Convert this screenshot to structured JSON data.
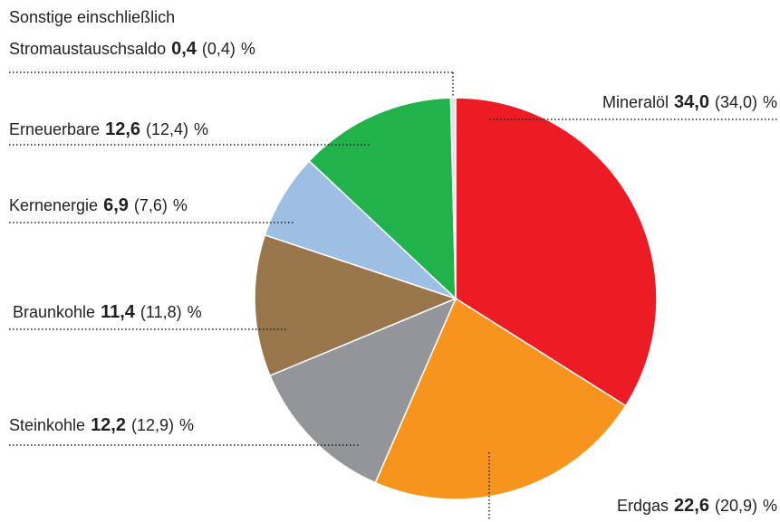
{
  "chart_data": {
    "type": "pie",
    "categories": [
      "Mineralöl",
      "Erdgas",
      "Steinkohle",
      "Braunkohle",
      "Kernenergie",
      "Erneuerbare",
      "Sonstige einschließlich\nStromaustauschsaldo"
    ],
    "values": [
      34.0,
      22.6,
      12.2,
      11.4,
      6.9,
      12.6,
      0.4
    ],
    "value_labels": [
      "34,0",
      "22,6",
      "12,2",
      "11,4",
      "6,9",
      "12,6",
      "0,4"
    ],
    "previous_values": [
      34.0,
      20.9,
      12.9,
      11.8,
      7.6,
      12.4,
      0.4
    ],
    "previous_value_labels": [
      "(34,0)",
      "(20,9)",
      "(12,9)",
      "(11,8)",
      "(7,6)",
      "(12,4)",
      "(0,4)"
    ],
    "unit": "%",
    "colors": [
      "#ed1c24",
      "#f7941d",
      "#939598",
      "#98754a",
      "#9dbfe3",
      "#22b24c",
      "#e3e3e3"
    ]
  }
}
